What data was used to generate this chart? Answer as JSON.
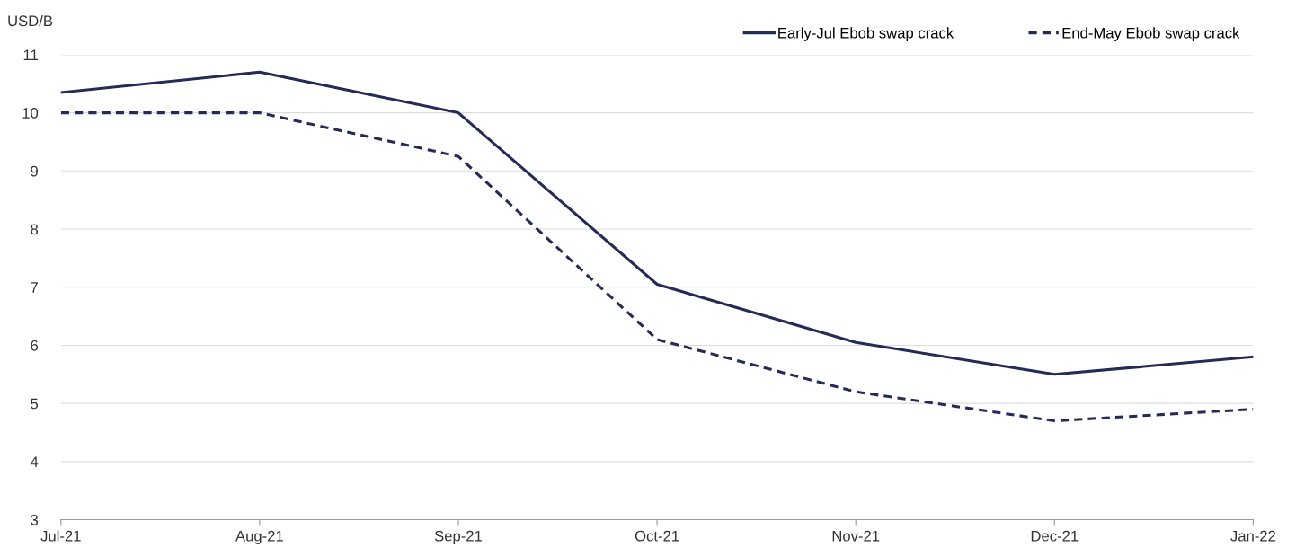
{
  "chart_data": {
    "type": "line",
    "ylabel": "USD/B",
    "categories": [
      "Jul-21",
      "Aug-21",
      "Sep-21",
      "Oct-21",
      "Nov-21",
      "Dec-21",
      "Jan-22"
    ],
    "series": [
      {
        "name": "Early-Jul Ebob swap crack",
        "color": "#262a56",
        "line_style": "solid",
        "values": [
          10.35,
          10.7,
          10.0,
          7.05,
          6.05,
          5.5,
          5.8
        ]
      },
      {
        "name": "End-May Ebob swap crack",
        "color": "#262a56",
        "line_style": "dashed",
        "values": [
          10.0,
          10.0,
          9.25,
          6.1,
          5.2,
          4.7,
          4.9
        ]
      }
    ],
    "ylim": [
      3,
      11
    ],
    "yticks": [
      3,
      4,
      5,
      6,
      7,
      8,
      9,
      10,
      11
    ],
    "grid": "y",
    "legend": "top right",
    "marker": "none"
  }
}
